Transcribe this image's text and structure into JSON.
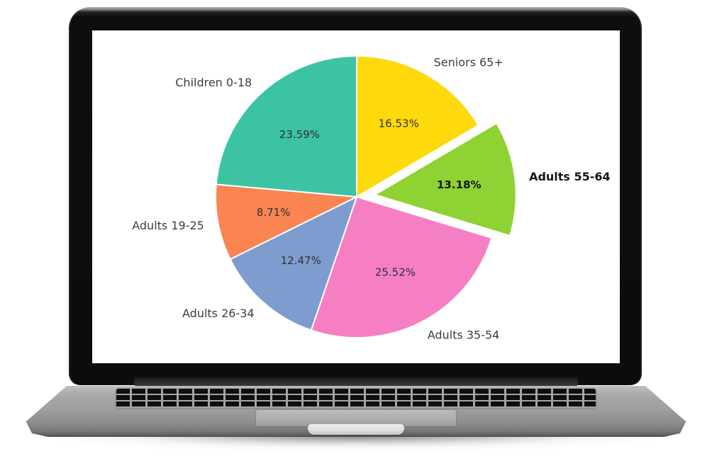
{
  "laptop": {
    "bezel_color": "#0e0e0e",
    "rim_color": "#a2a2a0",
    "screen_background": "#ffffff",
    "body_color": "#a5a4a2",
    "key_color": "#0e0e0e"
  },
  "chart_data": {
    "type": "pie",
    "labels": [
      "Seniors 65+",
      "Adults 55-64",
      "Adults 35-54",
      "Adults 26-34",
      "Adults 19-25",
      "Children 0-18"
    ],
    "values": [
      16.53,
      13.18,
      25.52,
      12.47,
      8.71,
      23.59
    ],
    "value_labels": [
      "16.53%",
      "13.18%",
      "25.52%",
      "12.47%",
      "8.71%",
      "23.59%"
    ],
    "colors": [
      "#FED90B",
      "#8FD233",
      "#F67FC4",
      "#7E9DCE",
      "#FB8453",
      "#3CC3A4"
    ],
    "explode": [
      0,
      0.13,
      0,
      0,
      0,
      0
    ],
    "emphasis_index": 1,
    "start_angle_deg": 0,
    "direction": "clockwise",
    "label_distance": 1.1,
    "pct_distance": 0.6,
    "label_color": "#3d3d3d",
    "pct_color": "#303030",
    "slice_edge_color": "#ffffff",
    "legend": "none",
    "title": ""
  }
}
